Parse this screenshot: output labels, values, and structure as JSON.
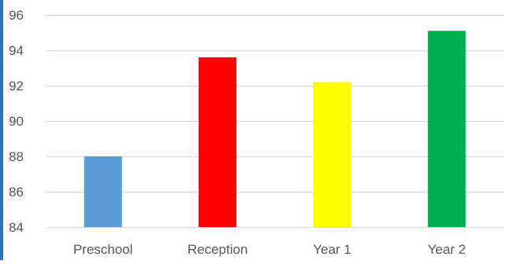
{
  "chart_data": {
    "type": "bar",
    "title": "",
    "xlabel": "",
    "ylabel": "",
    "categories": [
      "Preschool",
      "Reception",
      "Year 1",
      "Year 2"
    ],
    "values": [
      88.0,
      93.6,
      92.2,
      95.1
    ],
    "bar_colors": [
      "#5b9bd5",
      "#ff0000",
      "#ffff00",
      "#00b050"
    ],
    "ylim": [
      84,
      96
    ],
    "yticks": [
      84,
      86,
      88,
      90,
      92,
      94,
      96
    ],
    "ytick_labels": [
      "84",
      "86",
      "88",
      "90",
      "92",
      "94",
      "96"
    ],
    "grid": true,
    "legend": "none"
  },
  "style": {
    "gridline_color": "#d9d9d9",
    "axis_text_color": "#595959",
    "left_accent_color": "#2e75b6"
  }
}
